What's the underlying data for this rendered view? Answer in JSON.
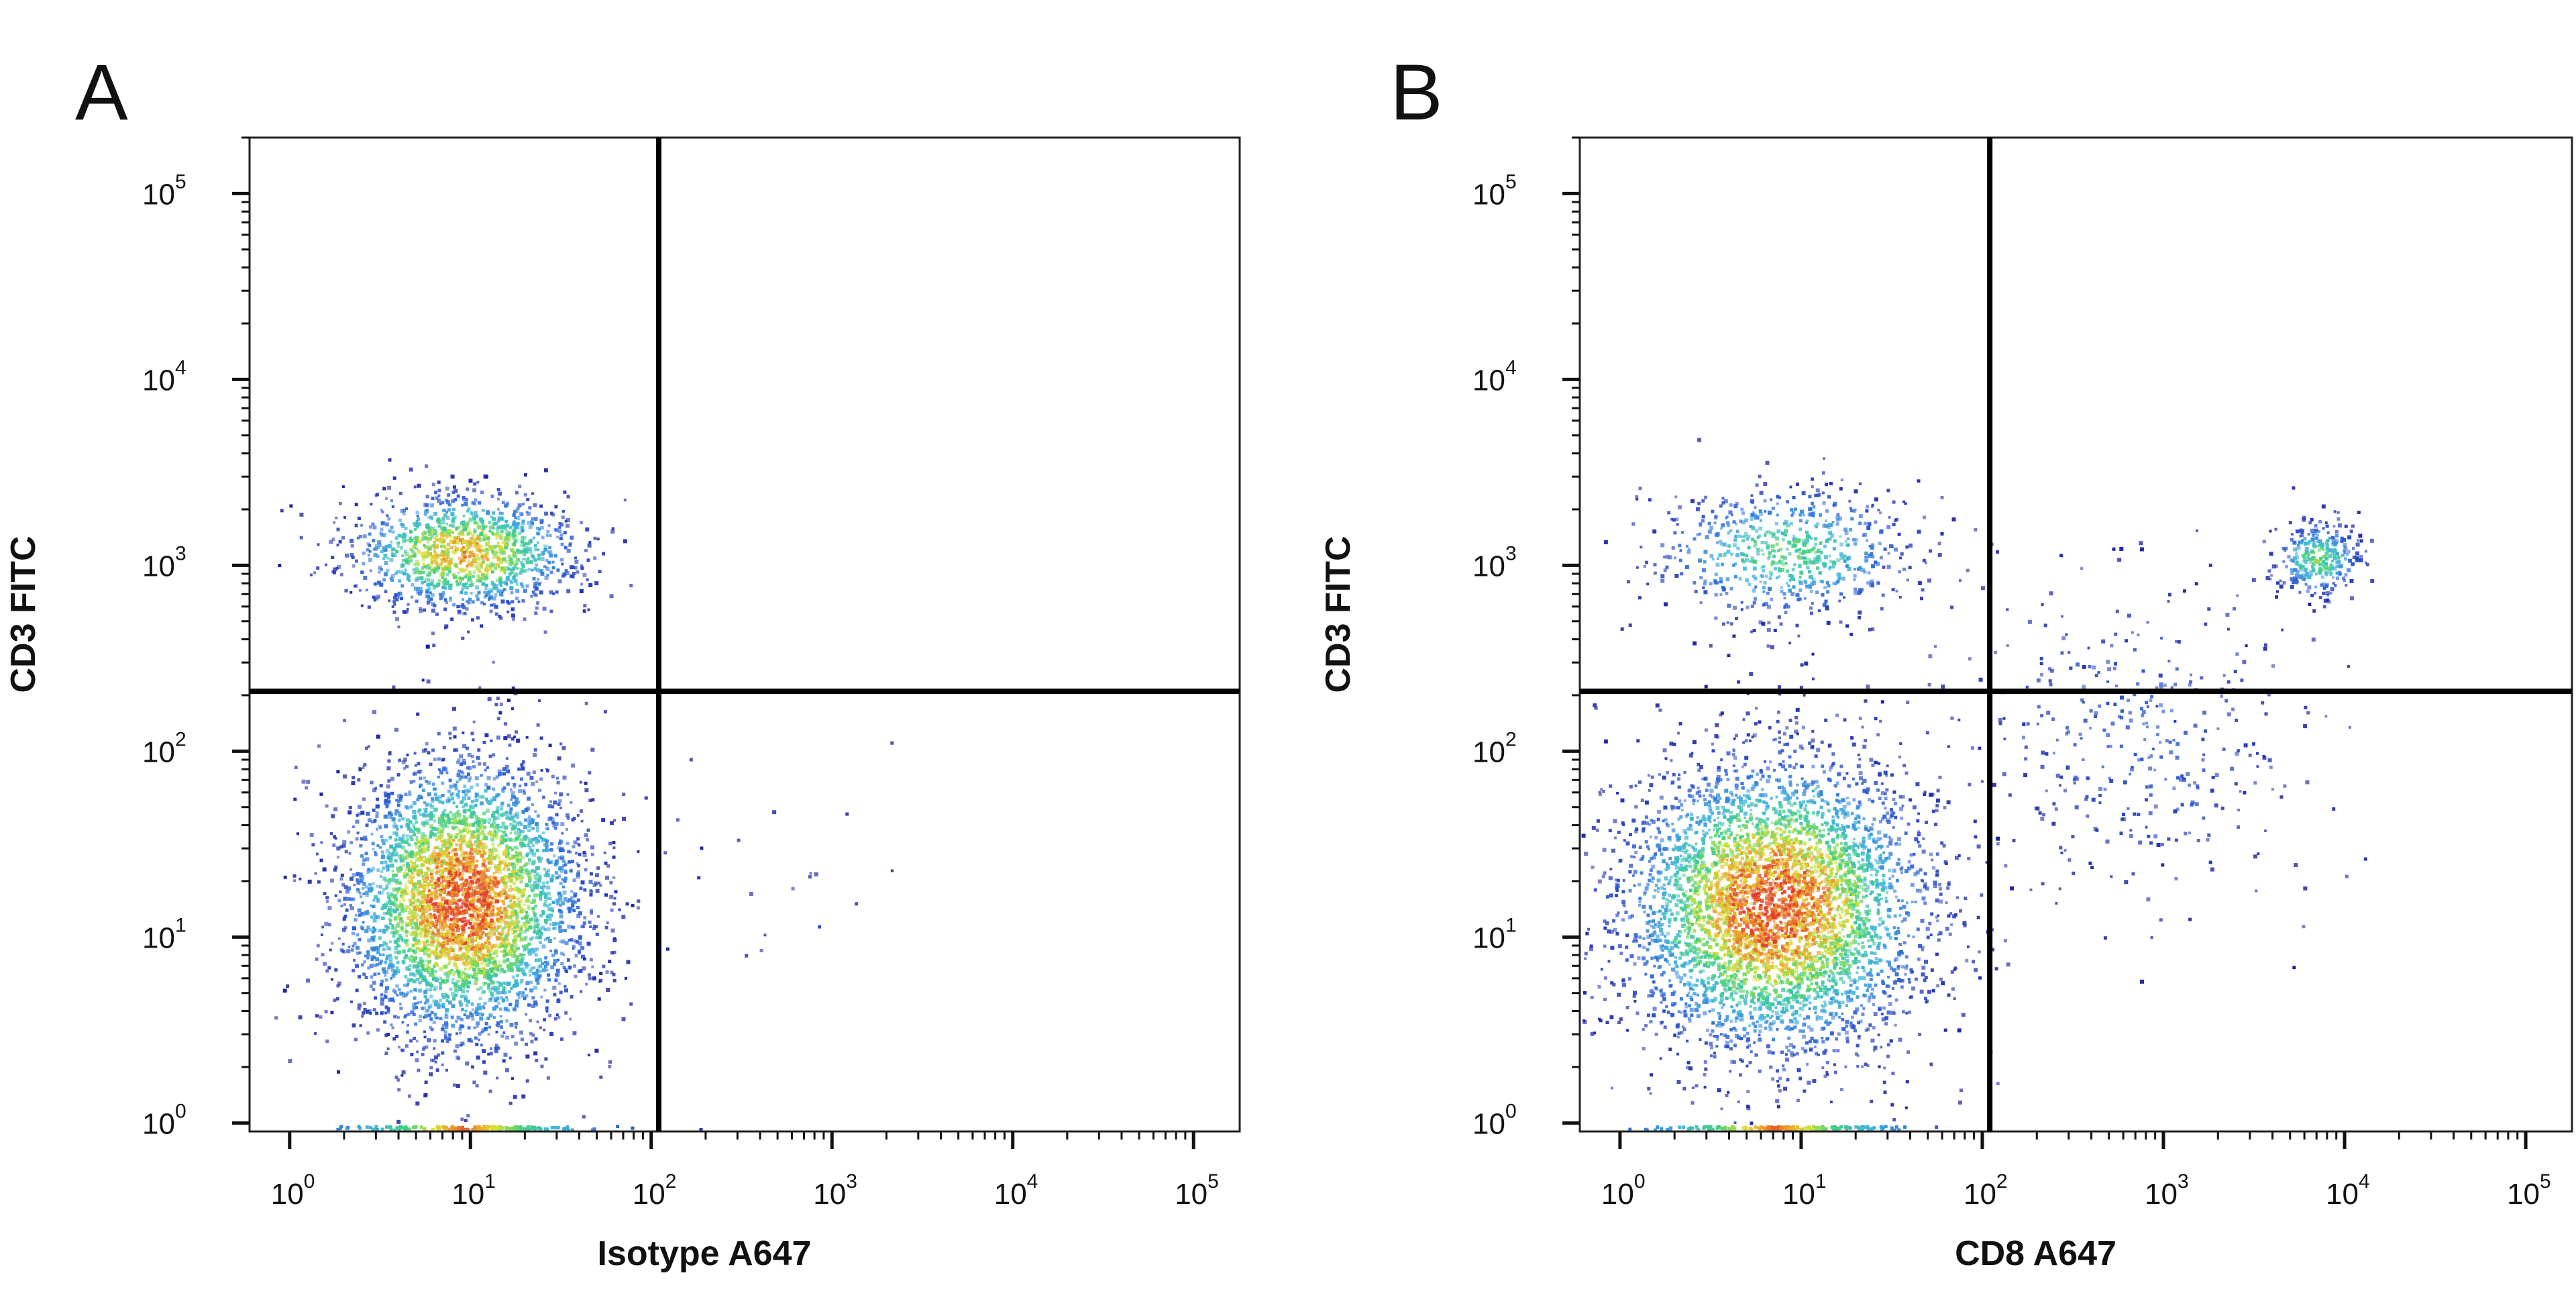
{
  "chart_data": [
    {
      "type": "scatter",
      "panel_label": "A",
      "xlabel": "Isotype A647",
      "ylabel": "CD3 FITC",
      "xscale": "log",
      "yscale": "log",
      "xlim": [
        0.6,
        180000
      ],
      "ylim": [
        0.9,
        200000
      ],
      "x_tick_labels": [
        {
          "base": "10",
          "exp": "0"
        },
        {
          "base": "10",
          "exp": "1"
        },
        {
          "base": "10",
          "exp": "2"
        },
        {
          "base": "10",
          "exp": "3"
        },
        {
          "base": "10",
          "exp": "4"
        },
        {
          "base": "10",
          "exp": "5"
        }
      ],
      "y_tick_labels": [
        {
          "base": "10",
          "exp": "0"
        },
        {
          "base": "10",
          "exp": "1"
        },
        {
          "base": "10",
          "exp": "2"
        },
        {
          "base": "10",
          "exp": "3"
        },
        {
          "base": "10",
          "exp": "4"
        },
        {
          "base": "10",
          "exp": "5"
        }
      ],
      "quadrant_gate": {
        "x": 110,
        "y": 210
      },
      "populations": [
        {
          "x_center": 9,
          "y_center": 1200,
          "x_spread_decades": 0.32,
          "y_spread_decades": 0.16,
          "count": 1300,
          "peak_density": 0.8
        },
        {
          "x_center": 9,
          "y_center": 16,
          "x_spread_decades": 0.33,
          "y_spread_decades": 0.38,
          "count": 4200,
          "peak_density": 1.0
        },
        {
          "x_center": 500,
          "y_center": 25,
          "x_spread_decades": 0.35,
          "y_spread_decades": 0.4,
          "count": 20,
          "peak_density": 0.05
        }
      ],
      "axis_events_density": 0.6,
      "colors": {
        "density_scale": [
          "#1a1a9e",
          "#2f62d8",
          "#3fb6e0",
          "#3fd17a",
          "#d7e234",
          "#f09a28",
          "#e03a2a"
        ]
      }
    },
    {
      "type": "scatter",
      "panel_label": "B",
      "xlabel": "CD8 A647",
      "ylabel": "CD3 FITC",
      "xscale": "log",
      "yscale": "log",
      "xlim": [
        0.6,
        180000
      ],
      "ylim": [
        0.9,
        200000
      ],
      "x_tick_labels": [
        {
          "base": "10",
          "exp": "0"
        },
        {
          "base": "10",
          "exp": "1"
        },
        {
          "base": "10",
          "exp": "2"
        },
        {
          "base": "10",
          "exp": "3"
        },
        {
          "base": "10",
          "exp": "4"
        },
        {
          "base": "10",
          "exp": "5"
        }
      ],
      "y_tick_labels": [
        {
          "base": "10",
          "exp": "0"
        },
        {
          "base": "10",
          "exp": "1"
        },
        {
          "base": "10",
          "exp": "2"
        },
        {
          "base": "10",
          "exp": "3"
        },
        {
          "base": "10",
          "exp": "4"
        },
        {
          "base": "10",
          "exp": "5"
        }
      ],
      "quadrant_gate": {
        "x": 110,
        "y": 210
      },
      "populations": [
        {
          "x_center": 8,
          "y_center": 1200,
          "x_spread_decades": 0.38,
          "y_spread_decades": 0.18,
          "count": 700,
          "peak_density": 0.5
        },
        {
          "x_center": 7,
          "y_center": 15,
          "x_spread_decades": 0.42,
          "y_spread_decades": 0.4,
          "count": 4800,
          "peak_density": 1.0
        },
        {
          "x_center": 7000,
          "y_center": 1100,
          "x_spread_decades": 0.12,
          "y_spread_decades": 0.1,
          "count": 320,
          "peak_density": 0.55
        },
        {
          "x_center": 700,
          "y_center": 120,
          "x_spread_decades": 0.45,
          "y_spread_decades": 0.45,
          "count": 380,
          "peak_density": 0.15
        }
      ],
      "axis_events_density": 0.6,
      "colors": {
        "density_scale": [
          "#1a1a9e",
          "#2f62d8",
          "#3fb6e0",
          "#3fd17a",
          "#d7e234",
          "#f09a28",
          "#e03a2a"
        ]
      }
    }
  ]
}
